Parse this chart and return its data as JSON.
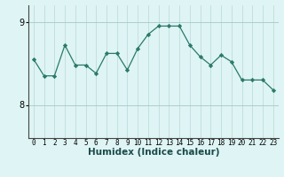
{
  "x": [
    0,
    1,
    2,
    3,
    4,
    5,
    6,
    7,
    8,
    9,
    10,
    11,
    12,
    13,
    14,
    15,
    16,
    17,
    18,
    19,
    20,
    21,
    22,
    23
  ],
  "y": [
    8.55,
    8.35,
    8.35,
    8.72,
    8.48,
    8.48,
    8.38,
    8.62,
    8.62,
    8.42,
    8.68,
    8.85,
    8.95,
    8.95,
    8.95,
    8.72,
    8.58,
    8.48,
    8.6,
    8.52,
    8.3,
    8.3,
    8.3,
    8.18
  ],
  "line_color": "#2a7a6a",
  "marker": "D",
  "marker_size": 2.2,
  "bg_color": "#dff4f4",
  "vgrid_color": "#b8d8d8",
  "hgrid_color": "#a8c8c8",
  "xlabel": "Humidex (Indice chaleur)",
  "xlabel_fontsize": 7.5,
  "ytick_labels": [
    "8",
    "9"
  ],
  "ytick_vals": [
    8,
    9
  ],
  "ylim": [
    7.6,
    9.2
  ],
  "xlim": [
    -0.5,
    23.5
  ],
  "xtick_fontsize": 5.5,
  "ytick_fontsize": 7.0
}
